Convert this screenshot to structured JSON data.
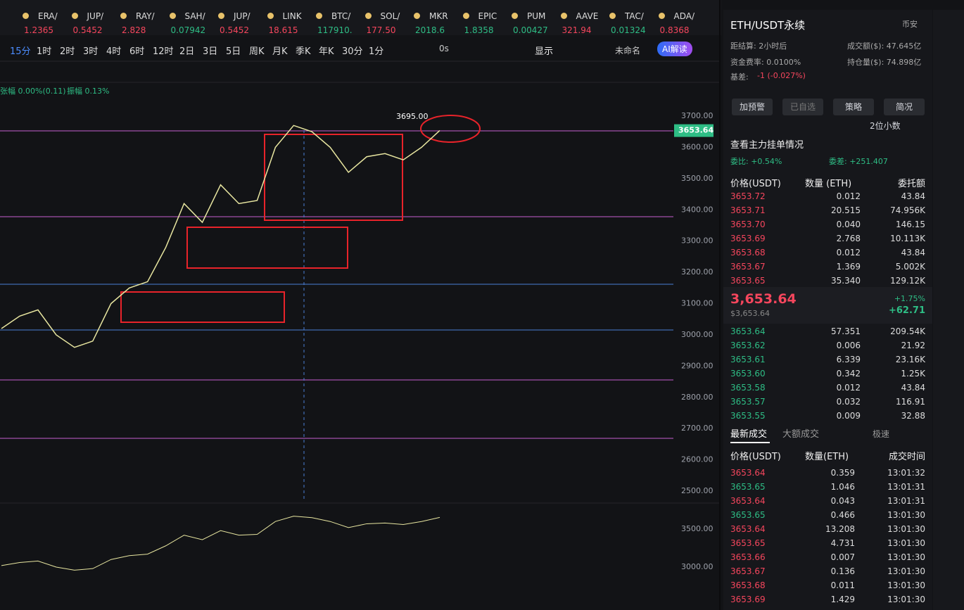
{
  "tickers": [
    {
      "symbol": "ERA/",
      "price": "1.2365",
      "color": "#f6465d"
    },
    {
      "symbol": "JUP/",
      "price": "0.5452",
      "color": "#f6465d"
    },
    {
      "symbol": "RAY/",
      "price": "2.828",
      "color": "#f6465d"
    },
    {
      "symbol": "SAH/",
      "price": "0.07942",
      "color": "#2ebd85"
    },
    {
      "symbol": "JUP/",
      "price": "0.5452",
      "color": "#f6465d"
    },
    {
      "symbol": "LINK",
      "price": "18.615",
      "color": "#f6465d"
    },
    {
      "symbol": "BTC/",
      "price": "117910.",
      "color": "#2ebd85"
    },
    {
      "symbol": "SOL/",
      "price": "177.50",
      "color": "#f6465d"
    },
    {
      "symbol": "MKR",
      "price": "2018.6",
      "color": "#2ebd85"
    },
    {
      "symbol": "EPIC",
      "price": "1.8358",
      "color": "#2ebd85"
    },
    {
      "symbol": "PUM",
      "price": "0.00427",
      "color": "#2ebd85"
    },
    {
      "symbol": "AAVE",
      "price": "321.94",
      "color": "#f6465d"
    },
    {
      "symbol": "TAC/",
      "price": "0.01324",
      "color": "#2ebd85"
    },
    {
      "symbol": "ADA/",
      "price": "0.8368",
      "color": "#f6465d"
    }
  ],
  "toolbar": {
    "intervals": [
      "15分",
      "1时",
      "2时",
      "3时",
      "4时",
      "6时",
      "12时",
      "2日",
      "3日",
      "5日",
      "周K",
      "月K",
      "季K",
      "年K",
      "30分",
      "1分"
    ],
    "countdown": "0s",
    "display": "显示",
    "layout": "未命名",
    "ai": "AI解读"
  },
  "stats": {
    "change": "张幅 0.00%(0.11)",
    "amplitude": "振幅 0.13%"
  },
  "chart_data": {
    "type": "line",
    "values": [
      3020,
      3060,
      3080,
      3000,
      2960,
      2980,
      3100,
      3150,
      3170,
      3280,
      3420,
      3360,
      3480,
      3420,
      3430,
      3600,
      3670,
      3650,
      3600,
      3520,
      3570,
      3580,
      3560,
      3600,
      3654
    ],
    "color": "#e8e6a0",
    "ylim": [
      2450,
      3760
    ],
    "yticks": [
      {
        "value": 2500,
        "label": "2500.00"
      },
      {
        "value": 2600,
        "label": "2600.00"
      },
      {
        "value": 2700,
        "label": "2700.00"
      },
      {
        "value": 2800,
        "label": "2800.00"
      },
      {
        "value": 2900,
        "label": "2900.00"
      },
      {
        "value": 3000,
        "label": "3000.00"
      },
      {
        "value": 3100,
        "label": "3100.00"
      },
      {
        "value": 3200,
        "label": "3200.00"
      },
      {
        "value": 3300,
        "label": "3300.00"
      },
      {
        "value": 3400,
        "label": "3400.00"
      },
      {
        "value": 3500,
        "label": "3500.00"
      },
      {
        "value": 3600,
        "label": "3600.00"
      },
      {
        "value": 3700,
        "label": "3700.00"
      }
    ],
    "high_label": "3695.00",
    "last_price": {
      "value": 3653.64,
      "label": "3653.64"
    },
    "lower_yticks": [
      {
        "value": 3000,
        "label": "3000.00"
      },
      {
        "value": 3500,
        "label": "3500.00"
      }
    ]
  },
  "panel": {
    "title": "ETH/USDT永续",
    "exchange": "币安",
    "settle": "距结算: 2小时后",
    "turnover": "成交额($): 47.645亿",
    "funding": "资金费率: 0.0100%",
    "open_interest": "持仓量($): 74.898亿",
    "basis_label": "基差:",
    "basis": "-1 (-0.027%)",
    "buttons": [
      "加预警",
      "已自选",
      "策略",
      "简况"
    ],
    "decimals": "2位小数",
    "main_orders": "查看主力挂单情况",
    "ratio": "委比: +0.54%",
    "diff": "委差: +251.407",
    "book_headers": [
      "价格(USDT)",
      "数量 (ETH)",
      "委托额"
    ],
    "asks": [
      [
        "3653.72",
        "0.012",
        "43.84"
      ],
      [
        "3653.71",
        "20.515",
        "74.956K"
      ],
      [
        "3653.70",
        "0.040",
        "146.15"
      ],
      [
        "3653.69",
        "2.768",
        "10.113K"
      ],
      [
        "3653.68",
        "0.012",
        "43.84"
      ],
      [
        "3653.67",
        "1.369",
        "5.002K"
      ],
      [
        "3653.65",
        "35.340",
        "129.12K"
      ]
    ],
    "mid": {
      "price": "3,653.64",
      "usd": "$3,653.64",
      "pct": "+1.75%",
      "change": "+62.71"
    },
    "bids": [
      [
        "3653.64",
        "57.351",
        "209.54K"
      ],
      [
        "3653.62",
        "0.006",
        "21.92"
      ],
      [
        "3653.61",
        "6.339",
        "23.16K"
      ],
      [
        "3653.60",
        "0.342",
        "1.25K"
      ],
      [
        "3653.58",
        "0.012",
        "43.84"
      ],
      [
        "3653.57",
        "0.032",
        "116.91"
      ],
      [
        "3653.55",
        "0.009",
        "32.88"
      ]
    ],
    "trade_tabs": [
      "最新成交",
      "大额成交",
      "极速"
    ],
    "trade_headers": [
      "价格(USDT)",
      "数量(ETH)",
      "成交时间"
    ],
    "trades": [
      [
        "3653.64",
        "0.359",
        "13:01:32",
        "#f6465d"
      ],
      [
        "3653.65",
        "1.046",
        "13:01:31",
        "#2ebd85"
      ],
      [
        "3653.64",
        "0.043",
        "13:01:31",
        "#f6465d"
      ],
      [
        "3653.65",
        "0.466",
        "13:01:30",
        "#2ebd85"
      ],
      [
        "3653.64",
        "13.208",
        "13:01:30",
        "#f6465d"
      ],
      [
        "3653.65",
        "4.731",
        "13:01:30",
        "#f6465d"
      ],
      [
        "3653.66",
        "0.007",
        "13:01:30",
        "#f6465d"
      ],
      [
        "3653.67",
        "0.136",
        "13:01:30",
        "#f6465d"
      ],
      [
        "3653.68",
        "0.011",
        "13:01:30",
        "#f6465d"
      ],
      [
        "3653.69",
        "1.429",
        "13:01:30",
        "#f6465d"
      ]
    ]
  }
}
